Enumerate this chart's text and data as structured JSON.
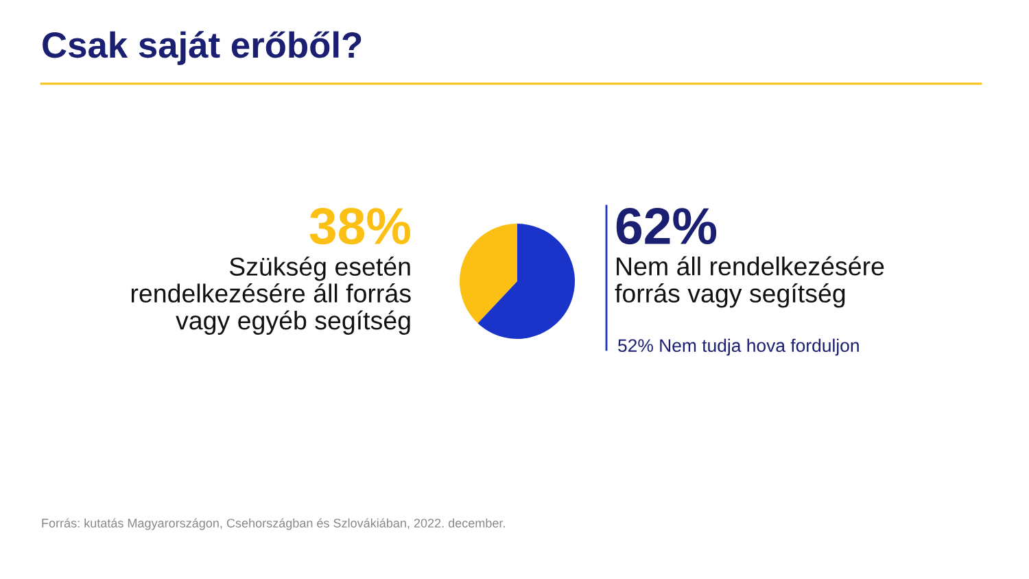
{
  "chart_data": {
    "type": "pie",
    "title": "Csak saját erőből?",
    "categories": [
      "Szükség esetén\nrendelkezésére áll forrás\nvagy egyéb segítség",
      "Nem áll rendelkezésére\nforrás vagy segítség"
    ],
    "values": [
      38,
      62
    ],
    "colors": [
      "#fcc015",
      "#1a33c8"
    ],
    "value_labels": [
      "38%",
      "62%"
    ],
    "annotations": [
      "52% Nem tudja hova forduljon",
      "Forrás: kutatás Magyarországon, Csehországban és Szlovákiában, 2022. december."
    ],
    "legend": false
  }
}
